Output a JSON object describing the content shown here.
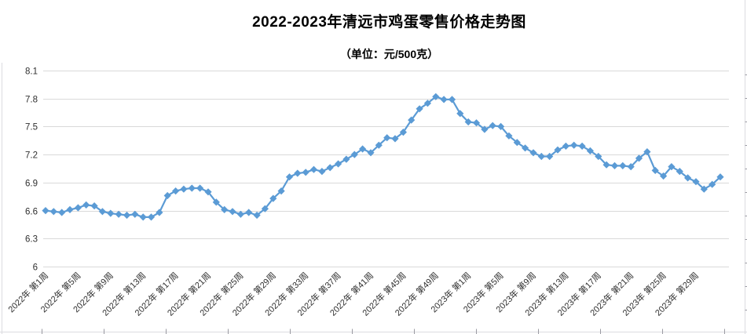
{
  "chart_data": {
    "type": "line",
    "title": "2022-2023年清远市鸡蛋零售价格走势图",
    "subtitle": "（单位：元/500克）",
    "xlabel": "",
    "ylabel": "",
    "ylim": [
      6,
      8.1
    ],
    "y_tick_step": 0.3,
    "grid": true,
    "legend": "none",
    "marker": "diamond",
    "series_color": "#5B9BD5",
    "grid_color": "#D9D9D9",
    "text_color": "#303030",
    "y_ticks": [
      {
        "v": 8.1,
        "label": "8.1"
      },
      {
        "v": 7.8,
        "label": "7.8"
      },
      {
        "v": 7.5,
        "label": "7.5"
      },
      {
        "v": 7.2,
        "label": "7.2"
      },
      {
        "v": 6.9,
        "label": "6.9"
      },
      {
        "v": 6.6,
        "label": "6.6"
      },
      {
        "v": 6.3,
        "label": "6.3"
      },
      {
        "v": 6.0,
        "label": "6"
      }
    ],
    "tick_every": 4,
    "x_tick_labels": [
      "2022年 第1周",
      "2022年 第5周",
      "2022年 第9周",
      "2022年 第13周",
      "2022年 第17周",
      "2022年 第21周",
      "2022年 第25周",
      "2022年 第29周",
      "2022年 第33周",
      "2022年 第37周",
      "2022年 第41周",
      "2022年 第45周",
      "2022年 第49周",
      "2023年 第1周",
      "2023年 第5周",
      "2023年 第9周",
      "2023年 第13周",
      "2023年 第17周",
      "2023年 第21周",
      "2023年 第25周",
      "2023年 第29周"
    ],
    "categories": [
      "2022年第1周",
      "2022年第2周",
      "2022年第3周",
      "2022年第4周",
      "2022年第5周",
      "2022年第6周",
      "2022年第7周",
      "2022年第8周",
      "2022年第9周",
      "2022年第10周",
      "2022年第11周",
      "2022年第12周",
      "2022年第13周",
      "2022年第14周",
      "2022年第15周",
      "2022年第16周",
      "2022年第17周",
      "2022年第18周",
      "2022年第19周",
      "2022年第20周",
      "2022年第21周",
      "2022年第22周",
      "2022年第23周",
      "2022年第24周",
      "2022年第25周",
      "2022年第26周",
      "2022年第27周",
      "2022年第28周",
      "2022年第29周",
      "2022年第30周",
      "2022年第31周",
      "2022年第32周",
      "2022年第33周",
      "2022年第34周",
      "2022年第35周",
      "2022年第36周",
      "2022年第37周",
      "2022年第38周",
      "2022年第39周",
      "2022年第40周",
      "2022年第41周",
      "2022年第42周",
      "2022年第43周",
      "2022年第44周",
      "2022年第45周",
      "2022年第46周",
      "2022年第47周",
      "2022年第48周",
      "2022年第49周",
      "2022年第50周",
      "2022年第51周",
      "2022年第52周",
      "2023年第1周",
      "2023年第2周",
      "2023年第3周",
      "2023年第4周",
      "2023年第5周",
      "2023年第6周",
      "2023年第7周",
      "2023年第8周",
      "2023年第9周",
      "2023年第10周",
      "2023年第11周",
      "2023年第12周",
      "2023年第13周",
      "2023年第14周",
      "2023年第15周",
      "2023年第16周",
      "2023年第17周",
      "2023年第18周",
      "2023年第19周",
      "2023年第20周",
      "2023年第21周",
      "2023年第22周",
      "2023年第23周",
      "2023年第24周",
      "2023年第25周",
      "2023年第26周",
      "2023年第27周",
      "2023年第28周",
      "2023年第29周",
      "2023年第30周",
      "2023年第31周",
      "2023年第32周"
    ],
    "values": [
      6.6,
      6.59,
      6.58,
      6.61,
      6.63,
      6.66,
      6.65,
      6.59,
      6.57,
      6.56,
      6.55,
      6.56,
      6.53,
      6.53,
      6.58,
      6.76,
      6.81,
      6.83,
      6.84,
      6.84,
      6.8,
      6.69,
      6.61,
      6.59,
      6.56,
      6.58,
      6.55,
      6.62,
      6.73,
      6.81,
      6.96,
      7.0,
      7.01,
      7.04,
      7.02,
      7.06,
      7.1,
      7.15,
      7.2,
      7.26,
      7.22,
      7.3,
      7.38,
      7.37,
      7.44,
      7.57,
      7.69,
      7.75,
      7.82,
      7.79,
      7.79,
      7.64,
      7.55,
      7.54,
      7.47,
      7.51,
      7.5,
      7.4,
      7.33,
      7.27,
      7.22,
      7.18,
      7.18,
      7.25,
      7.29,
      7.3,
      7.29,
      7.24,
      7.18,
      7.09,
      7.08,
      7.08,
      7.07,
      7.16,
      7.23,
      7.03,
      6.97,
      7.07,
      7.02,
      6.95,
      6.91,
      6.83,
      6.88,
      6.96
    ]
  }
}
